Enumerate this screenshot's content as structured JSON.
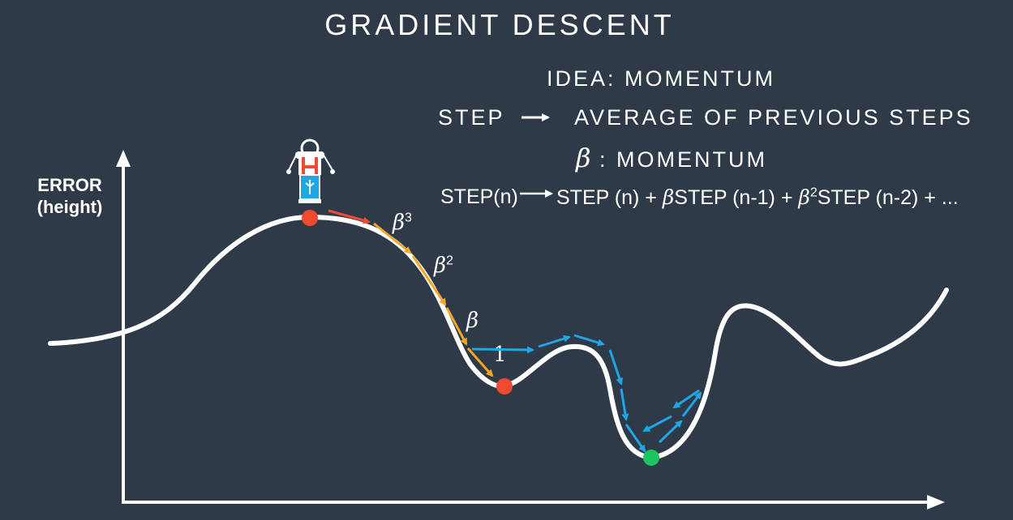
{
  "title": "GRADIENT DESCENT",
  "idea": "IDEA: MOMENTUM",
  "step_rule": {
    "left": "STEP",
    "right": "AVERAGE OF PREVIOUS STEPS"
  },
  "beta_def": {
    "symbol": "β",
    "text": ": MOMENTUM"
  },
  "formula": {
    "lhs": "STEP(n)",
    "t1": "STEP (n) +",
    "b1": "β",
    "t2": "STEP (n-1) +",
    "b2": "β",
    "e2": "2",
    "t3": "STEP (n-2) + ..."
  },
  "axis": {
    "y_label_1": "ERROR",
    "y_label_2": "(height)"
  },
  "step_labels": {
    "b3": "β",
    "b3_exp": "3",
    "b2": "β",
    "b2_exp": "2",
    "b1": "β",
    "one": "1"
  },
  "colors": {
    "background": "#2f3a48",
    "curve": "#ffffff",
    "start_point": "#f04a33",
    "local_min": "#f04a33",
    "global_min": "#1ec45e",
    "arrow_red": "#f04a33",
    "arrow_orange": "#f5a623",
    "arrow_blue": "#1ea7e4",
    "robot_body": "#1ea7e4",
    "robot_accent": "#f04a33"
  },
  "icons": {
    "robot": "robot-icon",
    "arrow": "right-arrow-icon"
  }
}
